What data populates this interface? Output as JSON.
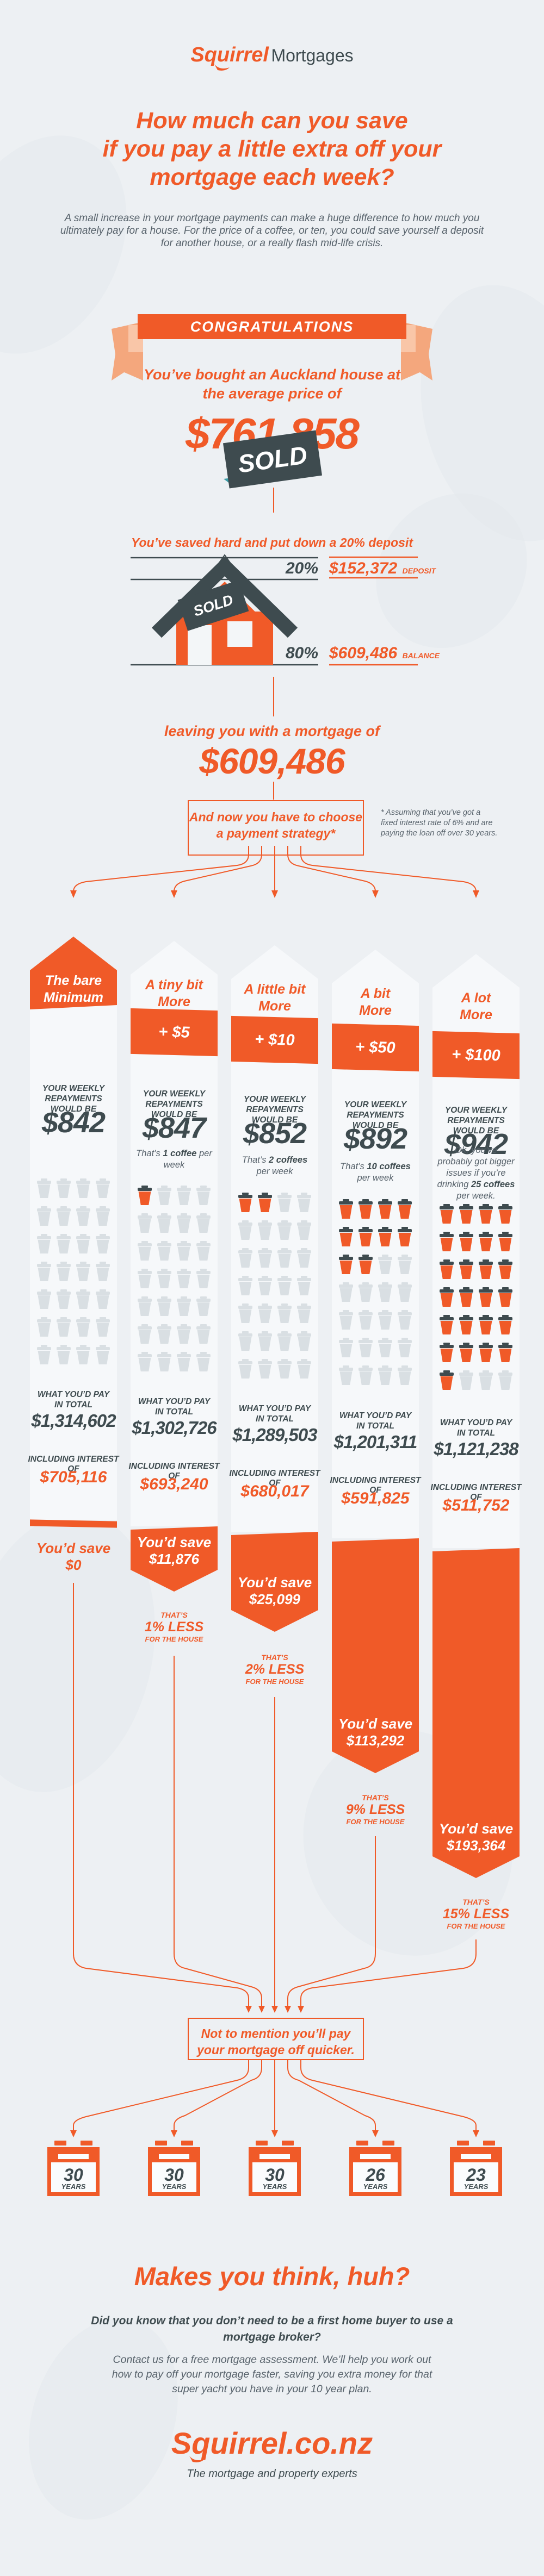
{
  "colors": {
    "orange": "#F05A28",
    "slate": "#3E4B4F",
    "background": "#EDF0F3",
    "column_bg": "#F6F8FA",
    "salmon": "#F4A77D",
    "cup_gray": "#D9DFE3",
    "text_gray": "#57626B"
  },
  "brand": {
    "logo_primary": "Squirrel",
    "logo_secondary": "Mortgages",
    "footer_logo": "Squirrel.co.nz",
    "tagline": "The mortgage and property experts"
  },
  "header": {
    "title_lines": [
      "How much can you save",
      "if you pay a little extra off your",
      "mortgage each week?"
    ],
    "intro_lines": [
      "A small increase in your mortgage payments can make a huge difference to how much you",
      "ultimately pay for a house. For the price of a coffee, or ten, you could save yourself a deposit",
      "for another house, or a really flash mid-life crisis."
    ]
  },
  "congrats": {
    "banner": "CONGRATULATIONS",
    "subtitle_lines": [
      "You’ve bought an Auckland house at",
      "the average price of"
    ],
    "price": "$761,858",
    "sold_label": "SOLD"
  },
  "deposit": {
    "headline": "You’ve saved hard and put down a 20% deposit",
    "deposit_pct": "20%",
    "deposit_amount": "$152,372",
    "deposit_label": "DEPOSIT",
    "balance_pct": "80%",
    "balance_amount": "$609,486",
    "balance_label": "BALANCE",
    "mortgage_lead": "leaving you with a mortgage of",
    "mortgage_amount": "$609,486"
  },
  "strategy": {
    "box_lines": [
      "And now you have to choose",
      "a payment strategy*"
    ],
    "footnote_lines": [
      "* Assuming that you’ve got a",
      "fixed interest rate of 6% and are",
      "paying the loan off over 30 years."
    ]
  },
  "shared": {
    "repay_label_lines": [
      "YOUR WEEKLY",
      "REPAYMENTS WOULD BE"
    ],
    "total_label_lines": [
      "WHAT YOU’D PAY",
      "IN TOTAL"
    ],
    "interest_label": "INCLUDING INTEREST OF",
    "years_label": "YEARS"
  },
  "columns": [
    {
      "title_lines": [
        "The bare",
        "Minimum"
      ],
      "extra": null,
      "weekly": "$842",
      "coffee": null,
      "cups_orange": 0,
      "cups_total": 28,
      "total": "$1,314,602",
      "interest": "$705,116",
      "save_lines": [
        "You’d save",
        "$0"
      ],
      "less_lines": null,
      "years": "30"
    },
    {
      "title_lines": [
        "A tiny bit",
        "More"
      ],
      "extra": "+ $5",
      "weekly": "$847",
      "coffee": {
        "pre": "That’s ",
        "bold": "1 coffee",
        "post": " per week"
      },
      "cups_orange": 1,
      "cups_total": 28,
      "total": "$1,302,726",
      "interest": "$693,240",
      "save_lines": [
        "You’d save",
        "$11,876"
      ],
      "less_lines": [
        "THAT’S",
        "1% LESS",
        "FOR THE HOUSE"
      ],
      "years": "30"
    },
    {
      "title_lines": [
        "A little bit",
        "More"
      ],
      "extra": "+ $10",
      "weekly": "$852",
      "coffee": {
        "pre": "That’s ",
        "bold": "2 coffees",
        "post": " per week"
      },
      "cups_orange": 2,
      "cups_total": 28,
      "total": "$1,289,503",
      "interest": "$680,017",
      "save_lines": [
        "You’d save",
        "$25,099"
      ],
      "less_lines": [
        "THAT’S",
        "2% LESS",
        "FOR THE HOUSE"
      ],
      "years": "30"
    },
    {
      "title_lines": [
        "A bit",
        "More"
      ],
      "extra": "+ $50",
      "weekly": "$892",
      "coffee": {
        "pre": "That’s ",
        "bold": "10 coffees",
        "post": " per week"
      },
      "cups_orange": 10,
      "cups_total": 28,
      "total": "$1,201,311",
      "interest": "$591,825",
      "save_lines": [
        "You’d save",
        "$113,292"
      ],
      "less_lines": [
        "THAT’S",
        "9% LESS",
        "FOR THE HOUSE"
      ],
      "years": "26"
    },
    {
      "title_lines": [
        "A lot",
        "More"
      ],
      "extra": "+ $100",
      "weekly": "$942",
      "coffee": {
        "pre": "Ok, you’ve probably got bigger issues if you’re drinking ",
        "bold": "25 coffees",
        "post": " per week."
      },
      "cups_orange": 25,
      "cups_total": 28,
      "total": "$1,121,238",
      "interest": "$511,752",
      "save_lines": [
        "You’d save",
        "$193,364"
      ],
      "less_lines": [
        "THAT’S",
        "15% LESS",
        "FOR THE HOUSE"
      ],
      "years": "23"
    }
  ],
  "quicker": {
    "box_lines": [
      "Not to mention you’ll pay",
      "your mortgage off quicker."
    ]
  },
  "footer": {
    "headline": "Makes you think, huh?",
    "question_lines": [
      "Did you know that you don’t need to be a first home buyer to use a",
      "mortgage broker?"
    ],
    "contact_lines": [
      "Contact us for a free mortgage assessment. We’ll help you work out",
      "how to pay off your mortgage faster, saving you extra money for that",
      "super yacht you have in your 10 year plan."
    ]
  },
  "chart_data": {
    "type": "table",
    "title": "How much can you save if you pay a little extra off your mortgage each week?",
    "categories": [
      "The bare Minimum",
      "A tiny bit More",
      "A little bit More",
      "A bit More",
      "A lot More"
    ],
    "series": [
      {
        "name": "Extra paid per week ($)",
        "values": [
          0,
          5,
          10,
          50,
          100
        ]
      },
      {
        "name": "Weekly repayment ($)",
        "values": [
          842,
          847,
          852,
          892,
          942
        ]
      },
      {
        "name": "Coffees per week (pictograph, of 28 cups)",
        "values": [
          0,
          1,
          2,
          10,
          25
        ]
      },
      {
        "name": "What you'd pay in total ($)",
        "values": [
          1314602,
          1302726,
          1289503,
          1201311,
          1121238
        ]
      },
      {
        "name": "Including interest of ($)",
        "values": [
          705116,
          693240,
          680017,
          591825,
          511752
        ]
      },
      {
        "name": "You'd save ($)",
        "values": [
          0,
          11876,
          25099,
          113292,
          193364
        ]
      },
      {
        "name": "Savings as % less for the house",
        "values": [
          0,
          1,
          2,
          9,
          15
        ]
      },
      {
        "name": "Years to pay off mortgage",
        "values": [
          30,
          30,
          30,
          26,
          23
        ]
      }
    ],
    "context": {
      "house_price": 761858,
      "deposit_pct": 20,
      "deposit": 152372,
      "balance_pct": 80,
      "mortgage": 609486,
      "fixed_interest_rate_pct": 6,
      "term_years": 30
    }
  }
}
